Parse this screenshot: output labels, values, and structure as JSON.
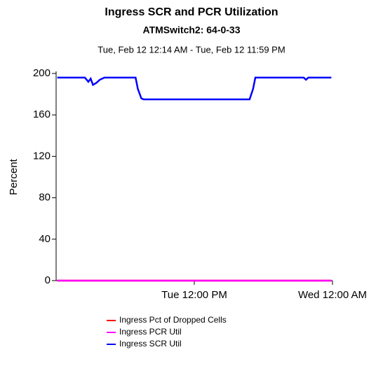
{
  "chart_data": {
    "type": "line",
    "title": "Ingress SCR and PCR Utilization",
    "subtitle": "ATMSwitch2: 64-0-33",
    "date_range": "Tue, Feb 12 12:14 AM - Tue, Feb 12 11:59 PM",
    "ylabel": "Percent",
    "x": [
      0.1,
      2.5,
      2.8,
      3.0,
      3.2,
      3.5,
      3.8,
      4.2,
      6.9,
      7.1,
      7.4,
      7.6,
      16.8,
      17.1,
      17.3,
      21.5,
      21.7,
      21.9,
      23.9
    ],
    "xlim": [
      0,
      24
    ],
    "xticks": [
      {
        "value": 12,
        "label": "Tue 12:00 PM"
      },
      {
        "value": 24,
        "label": "Wed 12:00 AM"
      }
    ],
    "ylim": [
      0,
      200
    ],
    "yticks": [
      0,
      40,
      80,
      120,
      160,
      200
    ],
    "series": [
      {
        "name": "Ingress Pct of Dropped Cells",
        "color": "#ff0000",
        "values": [
          0,
          0,
          0,
          0,
          0,
          0,
          0,
          0,
          0,
          0,
          0,
          0,
          0,
          0,
          0,
          0,
          0,
          0,
          0
        ]
      },
      {
        "name": "Ingress PCR Util",
        "color": "#ff00ff",
        "values": [
          0,
          0,
          0,
          0,
          0,
          0,
          0,
          0,
          0,
          0,
          0,
          0,
          0,
          0,
          0,
          0,
          0,
          0,
          0
        ]
      },
      {
        "name": "Ingress SCR Util",
        "color": "#0000ff",
        "values": [
          196,
          196,
          192,
          195,
          189,
          191,
          194,
          196,
          196,
          185,
          176,
          175,
          175,
          185,
          196,
          196,
          194,
          196,
          196
        ]
      }
    ]
  }
}
